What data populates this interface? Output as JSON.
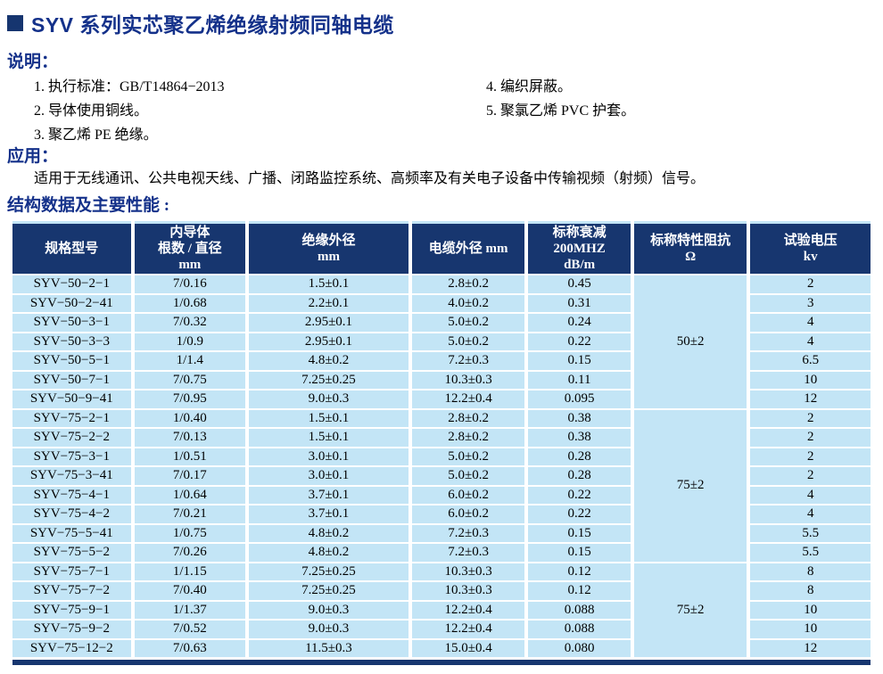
{
  "page": {
    "title": "SYV 系列实芯聚乙烯绝缘射频同轴电缆"
  },
  "colors": {
    "header_navy": "#17366f",
    "heading_blue": "#14318a",
    "cell_light_blue": "#c3e5f6",
    "separator_white": "#ffffff",
    "body_text": "#000000"
  },
  "sections": {
    "description": {
      "heading": "说明：",
      "items_left": [
        "1. 执行标准：GB/T14864−2013",
        "2. 导体使用铜线。",
        "3. 聚乙烯 PE 绝缘。"
      ],
      "items_right": [
        "4. 编织屏蔽。",
        "5. 聚氯乙烯 PVC 护套。"
      ]
    },
    "application": {
      "heading": "应用：",
      "text": "适用于无线通讯、公共电视天线、广播、闭路监控系统、高频率及有关电子设备中传输视频（射频）信号。"
    },
    "table_section": {
      "heading": "结构数据及主要性能 :"
    }
  },
  "table": {
    "columns": [
      "规格型号",
      "内导体\n根数 / 直径\nmm",
      "绝缘外径\nmm",
      "电缆外径 mm",
      "标称衰减\n200MHZ\ndB/m",
      "标称特性阻抗\nΩ",
      "试验电压\nkv"
    ],
    "groups": [
      {
        "impedance": "50±2",
        "rows": [
          [
            "SYV−50−2−1",
            "7/0.16",
            "1.5±0.1",
            "2.8±0.2",
            "0.45",
            "2"
          ],
          [
            "SYV−50−2−41",
            "1/0.68",
            "2.2±0.1",
            "4.0±0.2",
            "0.31",
            "3"
          ],
          [
            "SYV−50−3−1",
            "7/0.32",
            "2.95±0.1",
            "5.0±0.2",
            "0.24",
            "4"
          ],
          [
            "SYV−50−3−3",
            "1/0.9",
            "2.95±0.1",
            "5.0±0.2",
            "0.22",
            "4"
          ],
          [
            "SYV−50−5−1",
            "1/1.4",
            "4.8±0.2",
            "7.2±0.3",
            "0.15",
            "6.5"
          ],
          [
            "SYV−50−7−1",
            "7/0.75",
            "7.25±0.25",
            "10.3±0.3",
            "0.11",
            "10"
          ],
          [
            "SYV−50−9−41",
            "7/0.95",
            "9.0±0.3",
            "12.2±0.4",
            "0.095",
            "12"
          ]
        ]
      },
      {
        "impedance": "75±2",
        "rows": [
          [
            "SYV−75−2−1",
            "1/0.40",
            "1.5±0.1",
            "2.8±0.2",
            "0.38",
            "2"
          ],
          [
            "SYV−75−2−2",
            "7/0.13",
            "1.5±0.1",
            "2.8±0.2",
            "0.38",
            "2"
          ],
          [
            "SYV−75−3−1",
            "1/0.51",
            "3.0±0.1",
            "5.0±0.2",
            "0.28",
            "2"
          ],
          [
            "SYV−75−3−41",
            "7/0.17",
            "3.0±0.1",
            "5.0±0.2",
            "0.28",
            "2"
          ],
          [
            "SYV−75−4−1",
            "1/0.64",
            "3.7±0.1",
            "6.0±0.2",
            "0.22",
            "4"
          ],
          [
            "SYV−75−4−2",
            "7/0.21",
            "3.7±0.1",
            "6.0±0.2",
            "0.22",
            "4"
          ],
          [
            "SYV−75−5−41",
            "1/0.75",
            "4.8±0.2",
            "7.2±0.3",
            "0.15",
            "5.5"
          ],
          [
            "SYV−75−5−2",
            "7/0.26",
            "4.8±0.2",
            "7.2±0.3",
            "0.15",
            "5.5"
          ]
        ]
      },
      {
        "impedance": "75±2",
        "rows": [
          [
            "SYV−75−7−1",
            "1/1.15",
            "7.25±0.25",
            "10.3±0.3",
            "0.12",
            "8"
          ],
          [
            "SYV−75−7−2",
            "7/0.40",
            "7.25±0.25",
            "10.3±0.3",
            "0.12",
            "8"
          ],
          [
            "SYV−75−9−1",
            "1/1.37",
            "9.0±0.3",
            "12.2±0.4",
            "0.088",
            "10"
          ],
          [
            "SYV−75−9−2",
            "7/0.52",
            "9.0±0.3",
            "12.2±0.4",
            "0.088",
            "10"
          ],
          [
            "SYV−75−12−2",
            "7/0.63",
            "11.5±0.3",
            "15.0±0.4",
            "0.080",
            "12"
          ]
        ]
      }
    ]
  }
}
